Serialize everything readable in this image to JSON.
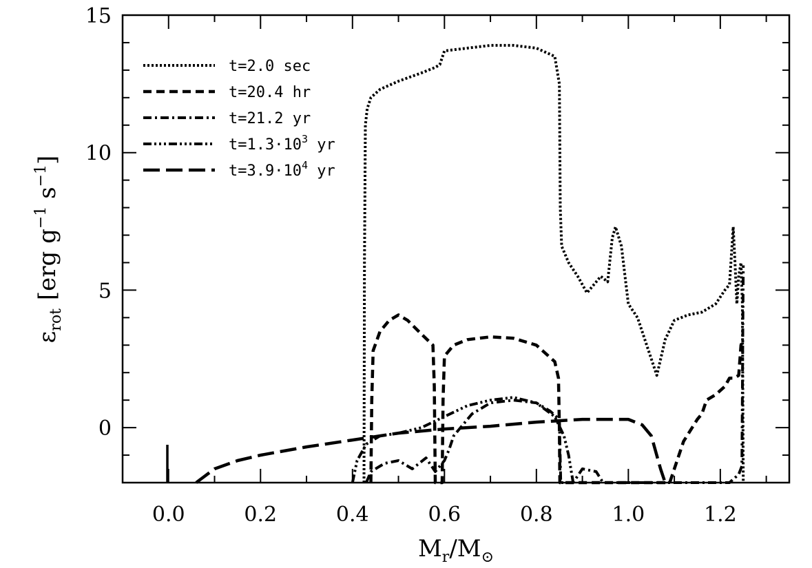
{
  "chart_data": {
    "type": "line",
    "xlim": [
      -0.1,
      1.35
    ],
    "ylim": [
      -2,
      15
    ],
    "x_ticks": [
      "0.0",
      "0.2",
      "0.4",
      "0.6",
      "0.8",
      "1.0",
      "1.2"
    ],
    "y_ticks": [
      "0",
      "5",
      "10",
      "15"
    ],
    "xlabel": {
      "main": "M",
      "sub1": "r",
      "mid": "/M",
      "sub2": "⊙"
    },
    "ylabel": {
      "main": "ε",
      "sub": "rot",
      "unit1": "[erg g",
      "exp1": "−1",
      "unit2": " s",
      "exp2": "−1",
      "unit3": "]"
    },
    "legend_position": "top-left",
    "series": [
      {
        "name": "t=2.0 sec",
        "label": {
          "prefix": "t=2.0 sec",
          "sup": "",
          "suffix": ""
        },
        "dash": "dotted",
        "points": [
          [
            0.425,
            -2
          ],
          [
            0.426,
            6
          ],
          [
            0.428,
            11
          ],
          [
            0.432,
            11.6
          ],
          [
            0.44,
            12.0
          ],
          [
            0.46,
            12.3
          ],
          [
            0.5,
            12.6
          ],
          [
            0.55,
            12.9
          ],
          [
            0.58,
            13.1
          ],
          [
            0.59,
            13.2
          ],
          [
            0.6,
            13.7
          ],
          [
            0.65,
            13.8
          ],
          [
            0.7,
            13.9
          ],
          [
            0.75,
            13.9
          ],
          [
            0.8,
            13.8
          ],
          [
            0.84,
            13.5
          ],
          [
            0.85,
            12.5
          ],
          [
            0.852,
            8
          ],
          [
            0.855,
            6.6
          ],
          [
            0.87,
            6.0
          ],
          [
            0.89,
            5.5
          ],
          [
            0.91,
            4.9
          ],
          [
            0.94,
            5.5
          ],
          [
            0.955,
            5.3
          ],
          [
            0.965,
            6.9
          ],
          [
            0.972,
            7.3
          ],
          [
            0.985,
            6.6
          ],
          [
            1.0,
            4.5
          ],
          [
            1.02,
            4.0
          ],
          [
            1.04,
            3.0
          ],
          [
            1.062,
            1.9
          ],
          [
            1.08,
            3.2
          ],
          [
            1.1,
            3.9
          ],
          [
            1.13,
            4.1
          ],
          [
            1.16,
            4.2
          ],
          [
            1.19,
            4.5
          ],
          [
            1.21,
            5.0
          ],
          [
            1.22,
            5.2
          ],
          [
            1.225,
            6.5
          ],
          [
            1.228,
            7.3
          ],
          [
            1.232,
            6.0
          ],
          [
            1.236,
            4.5
          ],
          [
            1.24,
            5.5
          ],
          [
            1.245,
            6.0
          ],
          [
            1.248,
            4.5
          ],
          [
            1.25,
            -2
          ]
        ]
      },
      {
        "name": "t=20.4 hr",
        "label": {
          "prefix": "t=20.4 hr",
          "sup": "",
          "suffix": ""
        },
        "dash": "short-dash",
        "points": [
          [
            0.44,
            -2
          ],
          [
            0.442,
            1
          ],
          [
            0.445,
            2.8
          ],
          [
            0.46,
            3.5
          ],
          [
            0.48,
            3.9
          ],
          [
            0.5,
            4.1
          ],
          [
            0.52,
            3.9
          ],
          [
            0.55,
            3.4
          ],
          [
            0.575,
            3.0
          ],
          [
            0.578,
            1.5
          ],
          [
            0.58,
            -2
          ],
          [
            0.595,
            -2
          ],
          [
            0.597,
            1
          ],
          [
            0.6,
            2.6
          ],
          [
            0.62,
            3.0
          ],
          [
            0.65,
            3.2
          ],
          [
            0.7,
            3.3
          ],
          [
            0.75,
            3.25
          ],
          [
            0.8,
            3.0
          ],
          [
            0.84,
            2.4
          ],
          [
            0.848,
            1.8
          ],
          [
            0.85,
            0
          ],
          [
            0.851,
            -2
          ],
          [
            1.09,
            -2
          ],
          [
            1.12,
            -0.5
          ],
          [
            1.15,
            0.3
          ],
          [
            1.16,
            0.5
          ],
          [
            1.17,
            1.0
          ],
          [
            1.19,
            1.2
          ],
          [
            1.21,
            1.5
          ],
          [
            1.22,
            1.8
          ],
          [
            1.23,
            1.8
          ],
          [
            1.24,
            1.9
          ],
          [
            1.245,
            3.0
          ],
          [
            1.25,
            3.2
          ]
        ]
      },
      {
        "name": "t=21.2 yr",
        "label": {
          "prefix": "t=21.2 yr",
          "sup": "",
          "suffix": ""
        },
        "dash": "dash-dot",
        "points": [
          [
            0.43,
            -2
          ],
          [
            0.44,
            -1.6
          ],
          [
            0.47,
            -1.3
          ],
          [
            0.5,
            -1.2
          ],
          [
            0.53,
            -1.5
          ],
          [
            0.56,
            -1.1
          ],
          [
            0.58,
            -1.6
          ],
          [
            0.6,
            -1.2
          ],
          [
            0.61,
            -0.8
          ],
          [
            0.62,
            -0.3
          ],
          [
            0.64,
            0.1
          ],
          [
            0.66,
            0.5
          ],
          [
            0.7,
            0.9
          ],
          [
            0.75,
            1.0
          ],
          [
            0.8,
            0.9
          ],
          [
            0.83,
            0.6
          ],
          [
            0.85,
            0.3
          ],
          [
            0.853,
            -2
          ],
          [
            0.88,
            -2
          ],
          [
            0.9,
            -1.5
          ],
          [
            0.93,
            -1.6
          ],
          [
            0.945,
            -2
          ],
          [
            1.22,
            -2
          ],
          [
            1.24,
            -1.7
          ],
          [
            1.247,
            -1.4
          ],
          [
            1.25,
            5.9
          ]
        ]
      },
      {
        "name": "t=1.3·10^3 yr",
        "label": {
          "prefix": "t=1.3·10",
          "sup": "3",
          "suffix": " yr"
        },
        "dash": "dash-dot-dot",
        "points": [
          [
            0.4,
            -2
          ],
          [
            0.41,
            -1.2
          ],
          [
            0.43,
            -0.6
          ],
          [
            0.46,
            -0.3
          ],
          [
            0.5,
            -0.2
          ],
          [
            0.55,
            0.0
          ],
          [
            0.6,
            0.4
          ],
          [
            0.65,
            0.8
          ],
          [
            0.7,
            1.0
          ],
          [
            0.75,
            1.1
          ],
          [
            0.8,
            0.9
          ],
          [
            0.84,
            0.4
          ],
          [
            0.86,
            -0.3
          ],
          [
            0.87,
            -1
          ],
          [
            0.88,
            -2
          ]
        ]
      },
      {
        "name": "t=3.9·10^4 yr",
        "label": {
          "prefix": "t=3.9·10",
          "sup": "4",
          "suffix": " yr"
        },
        "dash": "long-dash",
        "points": [
          [
            0.06,
            -2
          ],
          [
            0.1,
            -1.5
          ],
          [
            0.15,
            -1.2
          ],
          [
            0.2,
            -1.0
          ],
          [
            0.3,
            -0.7
          ],
          [
            0.4,
            -0.45
          ],
          [
            0.5,
            -0.2
          ],
          [
            0.6,
            -0.05
          ],
          [
            0.7,
            0.05
          ],
          [
            0.8,
            0.2
          ],
          [
            0.9,
            0.3
          ],
          [
            1.0,
            0.3
          ],
          [
            1.03,
            0.1
          ],
          [
            1.05,
            -0.3
          ],
          [
            1.07,
            -1.5
          ],
          [
            1.08,
            -2
          ]
        ]
      }
    ]
  }
}
